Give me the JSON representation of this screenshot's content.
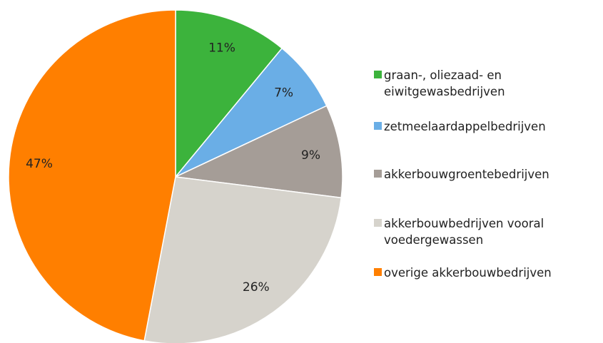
{
  "chart_data": {
    "type": "pie",
    "categories": [
      "graan-, oliezaad- en eiwitgewasbedrijven",
      "zetmeelaardappelbedrijven",
      "akkerbouwgroentebedrijven",
      "akkerbouwbedrijven vooral voedergewassen",
      "overige akkerbouwbedrijven"
    ],
    "values": [
      11,
      7,
      9,
      26,
      47
    ],
    "value_labels": [
      "11%",
      "7%",
      "9%",
      "26%",
      "47%"
    ],
    "colors": [
      "#3cb33c",
      "#6aaee6",
      "#a59d97",
      "#d6d3cc",
      "#ff7f00"
    ],
    "legend": "right"
  }
}
